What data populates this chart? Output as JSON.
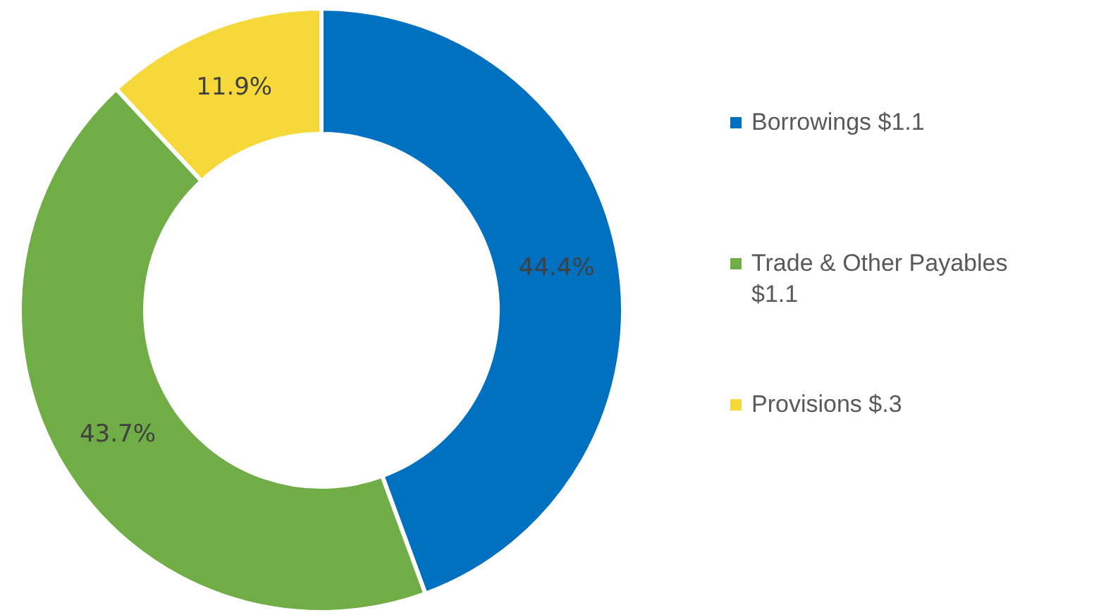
{
  "chart_data": {
    "type": "donut",
    "categories": [
      "Borrowings $1.1",
      "Trade & Other Payables $1.1",
      "Provisions $.3"
    ],
    "values": [
      44.4,
      43.7,
      11.9
    ],
    "value_labels": [
      "44.4%",
      "43.7%",
      "11.9%"
    ],
    "colors": [
      "#0070c0",
      "#70ad47",
      "#f7d83a"
    ],
    "legend": "right"
  }
}
